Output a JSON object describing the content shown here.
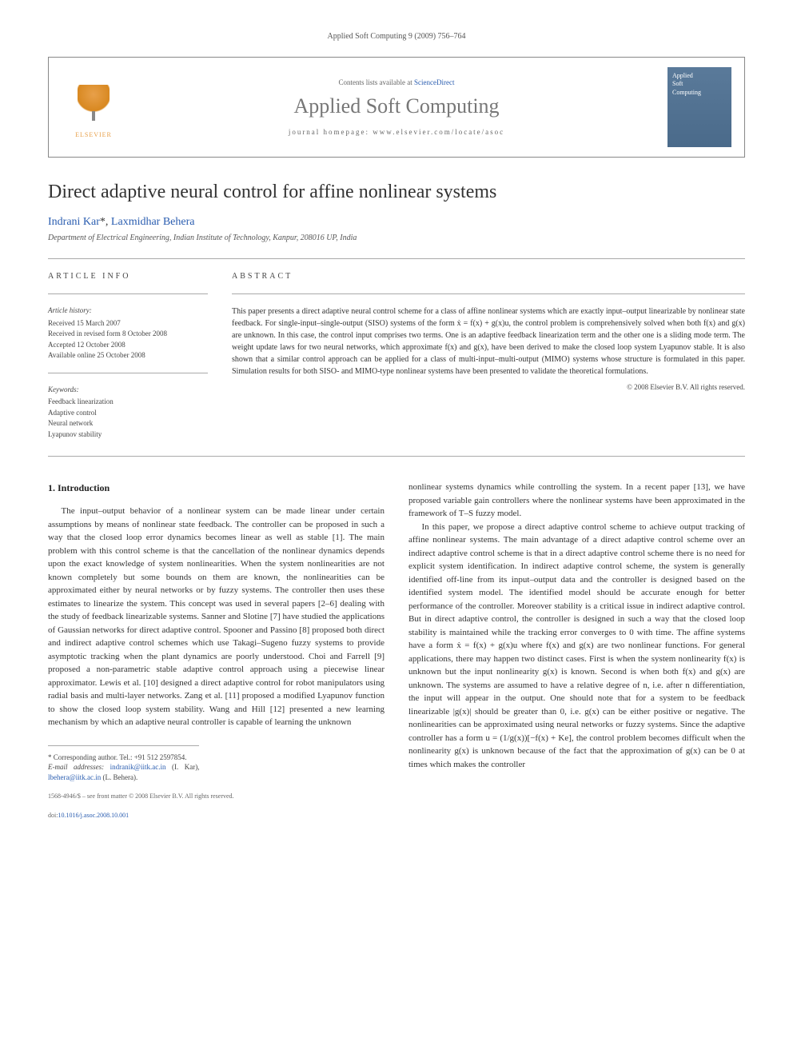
{
  "journal_header": "Applied Soft Computing 9 (2009) 756–764",
  "banner": {
    "contents_prefix": "Contents lists available at ",
    "contents_link": "ScienceDirect",
    "journal_name": "Applied Soft Computing",
    "homepage_prefix": "journal homepage: ",
    "homepage_url": "www.elsevier.com/locate/asoc",
    "elsevier_label": "ELSEVIER",
    "cover_line1": "Applied",
    "cover_line2": "Soft",
    "cover_line3": "Computing"
  },
  "article": {
    "title": "Direct adaptive neural control for affine nonlinear systems",
    "authors_plain": "Indrani Kar *, Laxmidhar Behera",
    "author1": "Indrani Kar",
    "author1_mark": "*",
    "author_sep": ", ",
    "author2": "Laxmidhar Behera",
    "affiliation": "Department of Electrical Engineering, Indian Institute of Technology, Kanpur, 208016 UP, India"
  },
  "info": {
    "heading": "ARTICLE INFO",
    "history_label": "Article history:",
    "received": "Received 15 March 2007",
    "revised": "Received in revised form 8 October 2008",
    "accepted": "Accepted 12 October 2008",
    "online": "Available online 25 October 2008",
    "keywords_label": "Keywords:",
    "kw1": "Feedback linearization",
    "kw2": "Adaptive control",
    "kw3": "Neural network",
    "kw4": "Lyapunov stability"
  },
  "abstract": {
    "heading": "ABSTRACT",
    "text": "This paper presents a direct adaptive neural control scheme for a class of affine nonlinear systems which are exactly input–output linearizable by nonlinear state feedback. For single-input–single-output (SISO) systems of the form ẋ = f(x) + g(x)u, the control problem is comprehensively solved when both f(x) and g(x) are unknown. In this case, the control input comprises two terms. One is an adaptive feedback linearization term and the other one is a sliding mode term. The weight update laws for two neural networks, which approximate f(x) and g(x), have been derived to make the closed loop system Lyapunov stable. It is also shown that a similar control approach can be applied for a class of multi-input–multi-output (MIMO) systems whose structure is formulated in this paper. Simulation results for both SISO- and MIMO-type nonlinear systems have been presented to validate the theoretical formulations.",
    "copyright": "© 2008 Elsevier B.V. All rights reserved."
  },
  "body": {
    "section1_heading": "1.  Introduction",
    "para1": "The input–output behavior of a nonlinear system can be made linear under certain assumptions by means of nonlinear state feedback. The controller can be proposed in such a way that the closed loop error dynamics becomes linear as well as stable [1]. The main problem with this control scheme is that the cancellation of the nonlinear dynamics depends upon the exact knowledge of system nonlinearities. When the system nonlinearities are not known completely but some bounds on them are known, the nonlinearities can be approximated either by neural networks or by fuzzy systems. The controller then uses these estimates to linearize the system. This concept was used in several papers [2–6] dealing with the study of feedback linearizable systems. Sanner and Slotine [7] have studied the applications of Gaussian networks for direct adaptive control. Spooner and Passino [8] proposed both direct and indirect adaptive control schemes which use Takagi–Sugeno fuzzy systems to provide asymptotic tracking when the plant dynamics are poorly understood. Choi and Farrell [9] proposed a non-parametric stable adaptive control approach using a piecewise linear approximator. Lewis et al. [10] designed a direct adaptive control for robot manipulators using radial basis and multi-layer networks. Zang et al. [11] proposed a modified Lyapunov function to show the closed loop system stability. Wang and Hill [12] presented a new learning mechanism by which an adaptive neural controller is capable of learning the unknown",
    "para2a": "nonlinear systems dynamics while controlling the system. In a recent paper [13], we have proposed variable gain controllers where the nonlinear systems have been approximated in the framework of T–S fuzzy model.",
    "para2b": "In this paper, we propose a direct adaptive control scheme to achieve output tracking of affine nonlinear systems. The main advantage of a direct adaptive control scheme over an indirect adaptive control scheme is that in a direct adaptive control scheme there is no need for explicit system identification. In indirect adaptive control scheme, the system is generally identified off-line from its input–output data and the controller is designed based on the identified system model. The identified model should be accurate enough for better performance of the controller. Moreover stability is a critical issue in indirect adaptive control. But in direct adaptive control, the controller is designed in such a way that the closed loop stability is maintained while the tracking error converges to 0 with time. The affine systems have a form ẋ = f(x) + g(x)u where f(x) and g(x) are two nonlinear functions. For general applications, there may happen two distinct cases. First is when the system nonlinearity f(x) is unknown but the input nonlinearity g(x) is known. Second is when both f(x) and g(x) are unknown. The systems are assumed to have a relative degree of n, i.e. after n differentiation, the input will appear in the output. One should note that for a system to be feedback linearizable |g(x)| should be greater than 0, i.e. g(x) can be either positive or negative. The nonlinearities can be approximated using neural networks or fuzzy systems. Since the adaptive controller has a form u = (1/g(x))[−f(x) + Ke], the control problem becomes difficult when the nonlinearity g(x) is unknown because of the fact that the approximation of g(x) can be 0 at times which makes the controller"
  },
  "footnotes": {
    "corresponding": "* Corresponding author. Tel.: +91 512 2597854.",
    "email_label": "E-mail addresses: ",
    "email1": "indranik@iitk.ac.in",
    "email1_who": " (I. Kar), ",
    "email2": "lbehera@iitk.ac.in",
    "email2_who": " (L. Behera)."
  },
  "footer": {
    "issn_line": "1568-4946/$ – see front matter © 2008 Elsevier B.V. All rights reserved.",
    "doi_prefix": "doi:",
    "doi": "10.1016/j.asoc.2008.10.001"
  },
  "refs": {
    "r1": "[1]",
    "r26": "[2–6]",
    "r7": "[7]",
    "r8": "[8]",
    "r9": "[9]",
    "r10": "[10]",
    "r11": "[11]",
    "r12": "[12]",
    "r13": "[13]"
  }
}
